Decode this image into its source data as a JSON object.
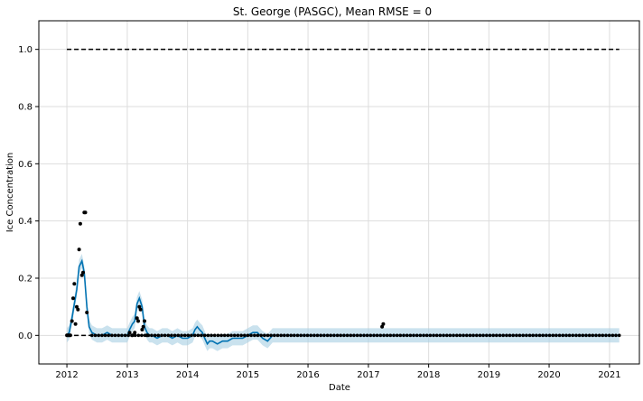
{
  "chart_data": {
    "type": "line",
    "title": "St. George (PASGC), Mean RMSE = 0",
    "xlabel": "Date",
    "ylabel": "Ice Concentration",
    "x_axis_type": "date",
    "xlim": [
      "2011-07-15",
      "2021-07-01"
    ],
    "ylim": [
      -0.1,
      1.1
    ],
    "x_ticks": [
      {
        "label": "2012",
        "date": "2012-01-01"
      },
      {
        "label": "2013",
        "date": "2013-01-01"
      },
      {
        "label": "2014",
        "date": "2014-01-01"
      },
      {
        "label": "2015",
        "date": "2015-01-01"
      },
      {
        "label": "2016",
        "date": "2016-01-01"
      },
      {
        "label": "2017",
        "date": "2017-01-01"
      },
      {
        "label": "2018",
        "date": "2018-01-01"
      },
      {
        "label": "2019",
        "date": "2019-01-01"
      },
      {
        "label": "2020",
        "date": "2020-01-01"
      },
      {
        "label": "2021",
        "date": "2021-01-01"
      }
    ],
    "y_ticks": [
      {
        "label": "0.0",
        "value": 0.0
      },
      {
        "label": "0.2",
        "value": 0.2
      },
      {
        "label": "0.4",
        "value": 0.4
      },
      {
        "label": "0.6",
        "value": 0.6
      },
      {
        "label": "0.8",
        "value": 0.8
      },
      {
        "label": "1.0",
        "value": 1.0
      }
    ],
    "grid": true,
    "legend": "none",
    "colors": {
      "forecast": "#0072B2",
      "interval": "#a6cee3",
      "observed": "#000000",
      "cap_floor": "#000000",
      "grid": "#dddddd"
    },
    "cap": {
      "value": 1.0,
      "start": "2012-01-01",
      "end": "2021-03-01"
    },
    "floor": {
      "value": 0.0,
      "start": "2012-01-01",
      "end": "2021-03-01"
    },
    "forecast": {
      "x": [
        "2012-01-01",
        "2012-01-15",
        "2012-02-01",
        "2012-02-15",
        "2012-03-01",
        "2012-03-15",
        "2012-04-01",
        "2012-04-15",
        "2012-05-01",
        "2012-05-15",
        "2012-06-01",
        "2012-07-01",
        "2012-08-01",
        "2012-09-01",
        "2012-10-01",
        "2012-11-01",
        "2012-12-01",
        "2013-01-01",
        "2013-01-15",
        "2013-02-01",
        "2013-02-15",
        "2013-03-01",
        "2013-03-15",
        "2013-04-01",
        "2013-04-15",
        "2013-05-01",
        "2013-05-15",
        "2013-06-01",
        "2013-07-01",
        "2013-08-01",
        "2013-09-01",
        "2013-10-01",
        "2013-11-01",
        "2013-12-01",
        "2014-01-01",
        "2014-02-01",
        "2014-02-15",
        "2014-03-01",
        "2014-03-15",
        "2014-04-01",
        "2014-04-15",
        "2014-05-01",
        "2014-05-15",
        "2014-06-01",
        "2014-07-01",
        "2014-08-01",
        "2014-09-01",
        "2014-10-01",
        "2014-11-01",
        "2014-12-01",
        "2015-01-01",
        "2015-02-01",
        "2015-03-01",
        "2015-04-01",
        "2015-05-01",
        "2015-06-01",
        "2015-08-01",
        "2015-10-01",
        "2015-12-01",
        "2016-03-01",
        "2016-06-01",
        "2016-09-01",
        "2016-12-01",
        "2017-03-01",
        "2017-06-01",
        "2017-09-01",
        "2017-12-01",
        "2018-06-01",
        "2018-12-01",
        "2019-06-01",
        "2019-12-01",
        "2020-06-01",
        "2020-12-01",
        "2021-03-01"
      ],
      "y": [
        0.0,
        0.01,
        0.06,
        0.11,
        0.16,
        0.24,
        0.26,
        0.22,
        0.1,
        0.03,
        0.01,
        0.0,
        0.0,
        0.01,
        0.0,
        0.0,
        0.0,
        0.0,
        0.02,
        0.04,
        0.05,
        0.11,
        0.13,
        0.1,
        0.03,
        0.01,
        0.0,
        0.0,
        -0.01,
        0.0,
        0.0,
        -0.01,
        0.0,
        -0.01,
        -0.01,
        0.0,
        0.02,
        0.03,
        0.02,
        0.01,
        -0.01,
        -0.03,
        -0.02,
        -0.02,
        -0.03,
        -0.02,
        -0.02,
        -0.01,
        -0.01,
        -0.01,
        0.0,
        0.01,
        0.01,
        -0.01,
        -0.02,
        0.0,
        0.0,
        0.0,
        0.0,
        0.0,
        0.0,
        0.0,
        0.0,
        0.0,
        0.0,
        0.0,
        0.0,
        0.0,
        0.0,
        0.0,
        0.0,
        0.0,
        0.0,
        0.0
      ],
      "interval_halfwidth": 0.025
    },
    "observed": {
      "x": [
        "2012-01-01",
        "2012-01-08",
        "2012-01-15",
        "2012-01-22",
        "2012-02-01",
        "2012-02-08",
        "2012-02-15",
        "2012-02-22",
        "2012-03-01",
        "2012-03-08",
        "2012-03-15",
        "2012-03-22",
        "2012-04-01",
        "2012-04-08",
        "2012-04-15",
        "2012-04-22",
        "2012-05-01",
        "2013-01-15",
        "2013-02-01",
        "2013-02-15",
        "2013-03-01",
        "2013-03-08",
        "2013-03-15",
        "2013-03-22",
        "2013-04-01",
        "2013-04-08",
        "2013-04-15",
        "2013-05-01",
        "2017-03-25",
        "2017-04-01"
      ],
      "y": [
        0.0,
        0.0,
        0.0,
        0.0,
        0.05,
        0.13,
        0.18,
        0.04,
        0.1,
        0.09,
        0.3,
        0.39,
        0.21,
        0.22,
        0.43,
        0.43,
        0.08,
        0.01,
        0.0,
        0.01,
        0.06,
        0.05,
        0.1,
        0.09,
        0.02,
        0.03,
        0.05,
        0.0,
        0.03,
        0.04
      ],
      "zero_series": {
        "start": "2012-06-01",
        "end": "2021-03-01",
        "value": 0.0,
        "count": 160
      }
    }
  }
}
